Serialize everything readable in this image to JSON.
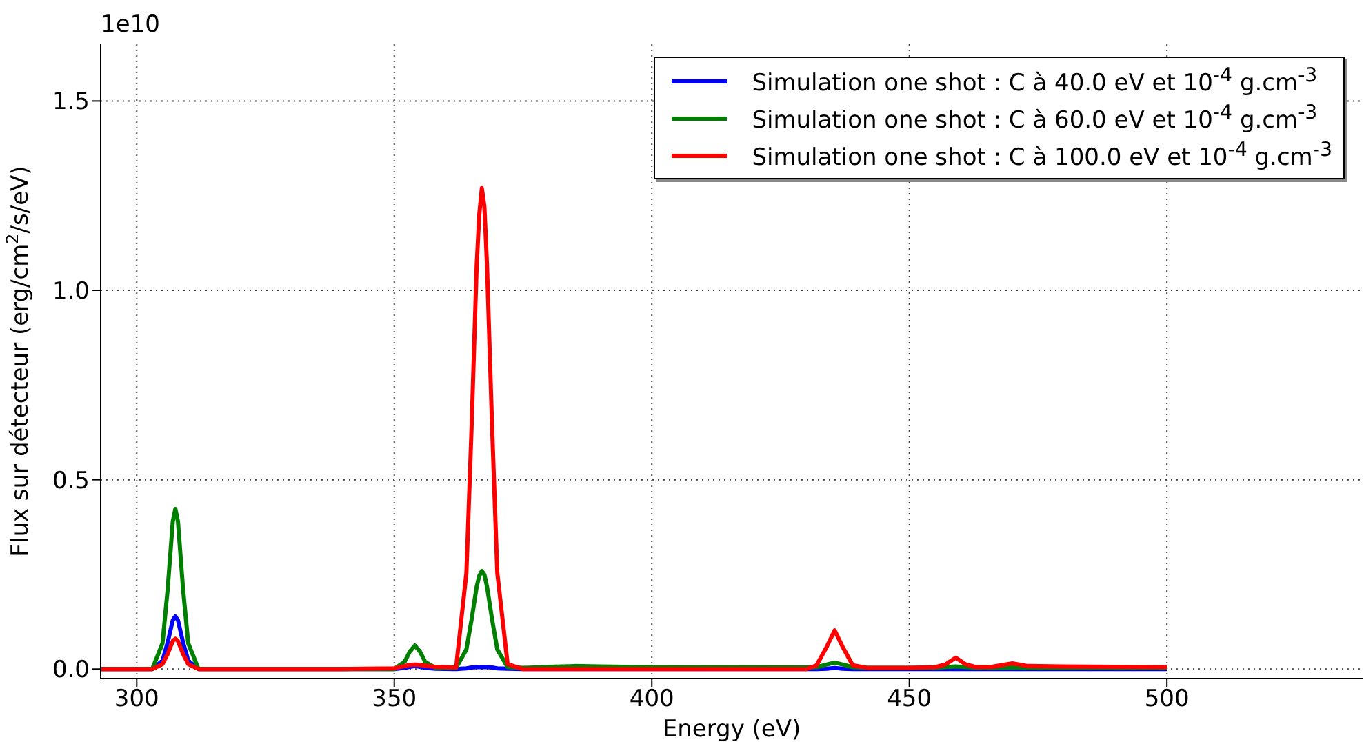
{
  "chart_data": {
    "type": "line",
    "xlabel": "Energy (eV)",
    "ylabel": "Flux sur détecteur (erg/cm$^{2}$/s/eV)",
    "annotations": [
      "1e10"
    ],
    "x": [
      293,
      300,
      303,
      305,
      306,
      307,
      307.5,
      308,
      309,
      310,
      312,
      315,
      340,
      350,
      352,
      353,
      354,
      355,
      356,
      358,
      362,
      364,
      365,
      366,
      366.5,
      367,
      367.5,
      368,
      369,
      370,
      372,
      375,
      380,
      385,
      390,
      400,
      430,
      432,
      434,
      435.5,
      437,
      439,
      442,
      450,
      455,
      457,
      459,
      461,
      463,
      466,
      470,
      473,
      480,
      490,
      500
    ],
    "xlim": [
      293,
      538
    ],
    "xticks": [
      300,
      350,
      400,
      450,
      500
    ],
    "ylim": [
      -0.025,
      1.65
    ],
    "yticks": [
      {
        "value": 0,
        "label": "0.0"
      },
      0.5,
      {
        "value": 1,
        "label": "1.0"
      },
      1.5
    ],
    "grid": true,
    "line_style": "solid",
    "marker": "none",
    "legend": "top right",
    "series": [
      {
        "name": "Simulation one shot : C à 40.0 eV et 10$^{-4}$ g.cm$^{-3}$",
        "color": "#0000ff",
        "values": [
          0,
          0,
          0,
          0.022,
          0.07,
          0.129,
          0.139,
          0.129,
          0.07,
          0.022,
          0,
          0,
          0,
          0,
          0.003,
          0.006,
          0.008,
          0.006,
          0.003,
          0.001,
          0,
          0.002,
          0.004,
          0.005,
          0.005,
          0.005,
          0.005,
          0.005,
          0.004,
          0.002,
          0.001,
          0,
          0,
          0,
          0,
          0,
          0,
          0,
          0.001,
          0.003,
          0.001,
          0,
          0,
          0,
          0,
          0,
          0,
          0,
          0,
          0,
          0,
          0,
          0,
          0,
          0
        ]
      },
      {
        "name": "Simulation one shot : C à 60.0 eV et 10$^{-4}$ g.cm$^{-3}$",
        "color": "#008000",
        "values": [
          0,
          0,
          0,
          0.068,
          0.21,
          0.39,
          0.423,
          0.39,
          0.21,
          0.068,
          0,
          0,
          0,
          0,
          0.019,
          0.046,
          0.062,
          0.046,
          0.019,
          0.003,
          0.003,
          0.052,
          0.13,
          0.218,
          0.246,
          0.259,
          0.249,
          0.218,
          0.13,
          0.052,
          0.005,
          0.003,
          0.006,
          0.008,
          0.007,
          0.005,
          0.004,
          0.005,
          0.012,
          0.017,
          0.012,
          0.005,
          0.003,
          0.003,
          0.003,
          0.005,
          0.007,
          0.005,
          0.003,
          0.003,
          0.004,
          0.003,
          0.003,
          0.003,
          0.003
        ]
      },
      {
        "name": "Simulation one shot : C à 100.0 eV et 10$^{-4}$ g.cm$^{-3}$",
        "color": "#ff0000",
        "values": [
          0,
          0,
          0,
          0.013,
          0.04,
          0.074,
          0.08,
          0.074,
          0.04,
          0.013,
          0,
          0,
          0,
          0.002,
          0.008,
          0.011,
          0.012,
          0.011,
          0.009,
          0.006,
          0.004,
          0.254,
          0.635,
          1.067,
          1.2,
          1.27,
          1.22,
          1.067,
          0.635,
          0.254,
          0.013,
          0,
          0,
          0,
          0,
          0,
          0,
          0.01,
          0.06,
          0.102,
          0.06,
          0.01,
          0.003,
          0.003,
          0.005,
          0.012,
          0.03,
          0.012,
          0.005,
          0.006,
          0.015,
          0.008,
          0.007,
          0.006,
          0.005
        ]
      }
    ]
  }
}
